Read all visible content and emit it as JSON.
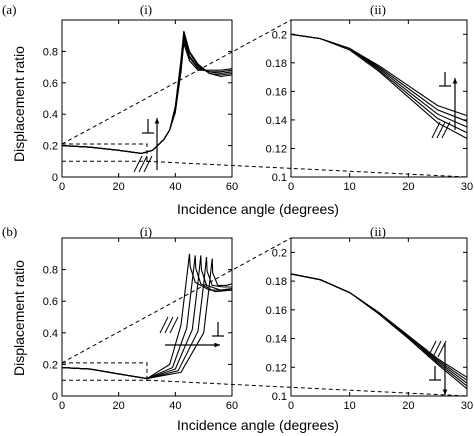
{
  "figure": {
    "ylabel": "Displacement ratio",
    "xlabel": "Incidence angle (degrees)"
  },
  "chart_data": [
    {
      "type": "line",
      "panel_label": "(a)",
      "subpanel_label": "(i)",
      "xlim": [
        0,
        60
      ],
      "ylim": [
        0,
        1
      ],
      "xticks": [
        0,
        20,
        40,
        60
      ],
      "yticks": [
        0,
        0.2,
        0.4,
        0.6,
        0.8
      ],
      "grid": false,
      "zoom_box": {
        "x": [
          0,
          30
        ],
        "y": [
          0.1,
          0.21
        ]
      },
      "series": [
        {
          "x": [
            0,
            10,
            20,
            28,
            32,
            36,
            38,
            40,
            42,
            43,
            45,
            48,
            52,
            56,
            60
          ],
          "y": [
            0.2,
            0.19,
            0.17,
            0.15,
            0.17,
            0.24,
            0.3,
            0.45,
            0.75,
            0.93,
            0.8,
            0.72,
            0.66,
            0.64,
            0.65
          ]
        },
        {
          "x": [
            0,
            10,
            20,
            28,
            32,
            36,
            38,
            40,
            42,
            43,
            45,
            48,
            52,
            56,
            60
          ],
          "y": [
            0.2,
            0.19,
            0.17,
            0.15,
            0.17,
            0.24,
            0.3,
            0.44,
            0.73,
            0.91,
            0.79,
            0.71,
            0.66,
            0.65,
            0.66
          ]
        },
        {
          "x": [
            0,
            10,
            20,
            28,
            32,
            36,
            38,
            40,
            42,
            43,
            45,
            48,
            52,
            56,
            60
          ],
          "y": [
            0.2,
            0.19,
            0.17,
            0.15,
            0.17,
            0.24,
            0.3,
            0.43,
            0.71,
            0.89,
            0.77,
            0.7,
            0.67,
            0.66,
            0.67
          ]
        },
        {
          "x": [
            0,
            10,
            20,
            28,
            32,
            36,
            38,
            40,
            42,
            43,
            45,
            48,
            52,
            56,
            60
          ],
          "y": [
            0.2,
            0.19,
            0.17,
            0.15,
            0.17,
            0.24,
            0.3,
            0.42,
            0.69,
            0.87,
            0.76,
            0.69,
            0.67,
            0.67,
            0.68
          ]
        },
        {
          "x": [
            0,
            10,
            20,
            28,
            32,
            36,
            38,
            40,
            42,
            43,
            45,
            48,
            52,
            56,
            60
          ],
          "y": [
            0.2,
            0.19,
            0.17,
            0.15,
            0.17,
            0.24,
            0.3,
            0.41,
            0.67,
            0.85,
            0.74,
            0.68,
            0.68,
            0.68,
            0.69
          ]
        }
      ]
    },
    {
      "type": "line",
      "subpanel_label": "(ii)",
      "xlim": [
        0,
        30
      ],
      "ylim": [
        0.1,
        0.21
      ],
      "xticks": [
        0,
        10,
        20,
        30
      ],
      "yticks": [
        0.1,
        0.12,
        0.14,
        0.16,
        0.18,
        0.2
      ],
      "grid": false,
      "series": [
        {
          "x": [
            0,
            5,
            10,
            15,
            20,
            25,
            30
          ],
          "y": [
            0.2,
            0.197,
            0.19,
            0.178,
            0.164,
            0.15,
            0.143
          ]
        },
        {
          "x": [
            0,
            5,
            10,
            15,
            20,
            25,
            30
          ],
          "y": [
            0.2,
            0.197,
            0.19,
            0.177,
            0.162,
            0.147,
            0.139
          ]
        },
        {
          "x": [
            0,
            5,
            10,
            15,
            20,
            25,
            30
          ],
          "y": [
            0.2,
            0.197,
            0.19,
            0.176,
            0.16,
            0.144,
            0.135
          ]
        },
        {
          "x": [
            0,
            5,
            10,
            15,
            20,
            25,
            30
          ],
          "y": [
            0.2,
            0.197,
            0.19,
            0.175,
            0.158,
            0.141,
            0.131
          ]
        },
        {
          "x": [
            0,
            5,
            10,
            15,
            20,
            25,
            30
          ],
          "y": [
            0.2,
            0.197,
            0.189,
            0.174,
            0.156,
            0.138,
            0.127
          ]
        }
      ]
    },
    {
      "type": "line",
      "panel_label": "(b)",
      "subpanel_label": "(i)",
      "xlim": [
        0,
        60
      ],
      "ylim": [
        0,
        1
      ],
      "xticks": [
        0,
        20,
        40,
        60
      ],
      "yticks": [
        0,
        0.2,
        0.4,
        0.6,
        0.8
      ],
      "grid": false,
      "zoom_box": {
        "x": [
          0,
          30
        ],
        "y": [
          0.1,
          0.21
        ]
      },
      "series": [
        {
          "x": [
            0,
            10,
            20,
            30,
            38,
            42,
            44,
            45,
            45.2,
            47,
            52,
            60
          ],
          "y": [
            0.18,
            0.17,
            0.14,
            0.11,
            0.2,
            0.45,
            0.75,
            0.9,
            0.82,
            0.72,
            0.67,
            0.67
          ]
        },
        {
          "x": [
            0,
            10,
            20,
            30,
            39,
            44,
            46,
            47,
            47.2,
            49,
            54,
            60
          ],
          "y": [
            0.18,
            0.17,
            0.14,
            0.11,
            0.18,
            0.43,
            0.73,
            0.89,
            0.81,
            0.71,
            0.66,
            0.67
          ]
        },
        {
          "x": [
            0,
            10,
            20,
            30,
            40,
            46,
            48,
            49,
            49.2,
            51,
            56,
            60
          ],
          "y": [
            0.18,
            0.17,
            0.14,
            0.11,
            0.17,
            0.42,
            0.72,
            0.89,
            0.8,
            0.7,
            0.67,
            0.68
          ]
        },
        {
          "x": [
            0,
            10,
            20,
            30,
            41,
            48,
            50,
            51,
            51.2,
            53,
            57,
            60
          ],
          "y": [
            0.18,
            0.17,
            0.14,
            0.11,
            0.16,
            0.41,
            0.71,
            0.88,
            0.79,
            0.7,
            0.69,
            0.69
          ]
        },
        {
          "x": [
            0,
            10,
            20,
            30,
            42,
            50,
            52,
            53,
            53.2,
            55,
            58,
            60
          ],
          "y": [
            0.18,
            0.17,
            0.14,
            0.11,
            0.15,
            0.4,
            0.7,
            0.87,
            0.78,
            0.7,
            0.7,
            0.71
          ]
        }
      ]
    },
    {
      "type": "line",
      "subpanel_label": "(ii)",
      "xlim": [
        0,
        30
      ],
      "ylim": [
        0.1,
        0.21
      ],
      "xticks": [
        0,
        10,
        20,
        30
      ],
      "yticks": [
        0.1,
        0.12,
        0.14,
        0.16,
        0.18,
        0.2
      ],
      "grid": false,
      "series": [
        {
          "x": [
            0,
            5,
            10,
            15,
            20,
            25,
            30
          ],
          "y": [
            0.185,
            0.181,
            0.172,
            0.158,
            0.142,
            0.126,
            0.113
          ]
        },
        {
          "x": [
            0,
            5,
            10,
            15,
            20,
            25,
            30
          ],
          "y": [
            0.185,
            0.181,
            0.172,
            0.158,
            0.142,
            0.125,
            0.111
          ]
        },
        {
          "x": [
            0,
            5,
            10,
            15,
            20,
            25,
            30
          ],
          "y": [
            0.185,
            0.181,
            0.172,
            0.158,
            0.141,
            0.124,
            0.109
          ]
        },
        {
          "x": [
            0,
            5,
            10,
            15,
            20,
            25,
            30
          ],
          "y": [
            0.185,
            0.181,
            0.172,
            0.158,
            0.141,
            0.123,
            0.107
          ]
        },
        {
          "x": [
            0,
            5,
            10,
            15,
            20,
            25,
            30
          ],
          "y": [
            0.185,
            0.181,
            0.172,
            0.157,
            0.14,
            0.122,
            0.105
          ]
        }
      ]
    }
  ]
}
